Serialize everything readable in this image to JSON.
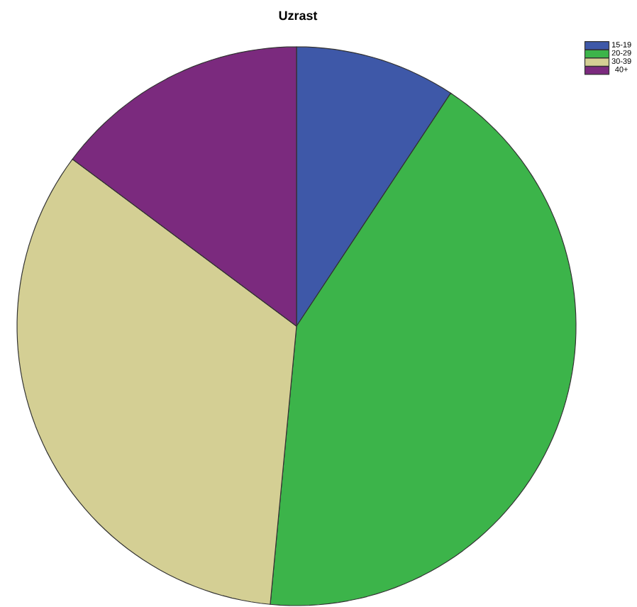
{
  "chart_data": {
    "type": "pie",
    "title": "Uzrast",
    "categories": [
      "15-19",
      "20-29",
      "30-39",
      "40+"
    ],
    "values": [
      9.3,
      42.2,
      33.7,
      14.8
    ],
    "colors": [
      "#3e58a8",
      "#3cb44a",
      "#d4cf94",
      "#7b2a7e"
    ],
    "legend": "top right"
  }
}
